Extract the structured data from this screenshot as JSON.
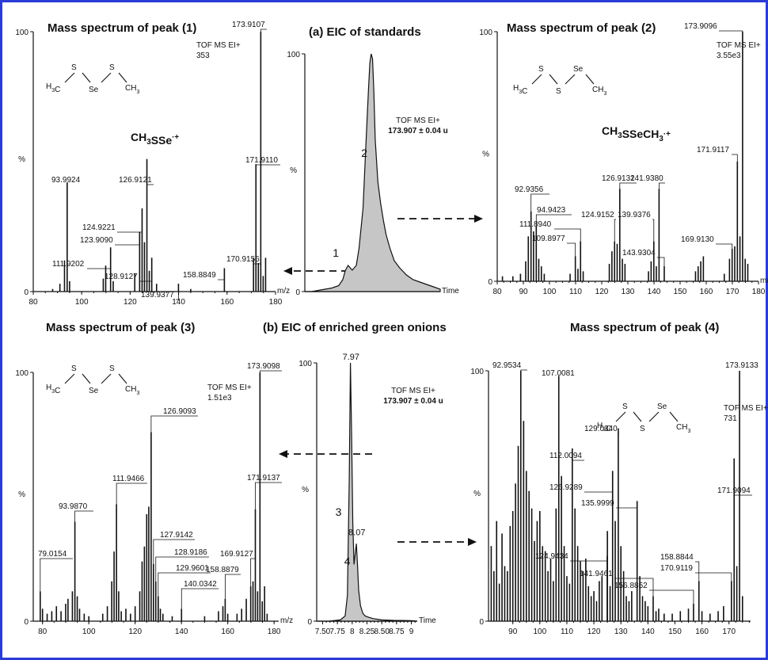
{
  "figure": {
    "header_a": "(a) EIC of standards",
    "header_b": "(b) EIC of enriched green onions"
  },
  "chart_data": [
    {
      "id": "p1",
      "type": "bar",
      "title": "Mass spectrum of peak (1)",
      "structure": "H3C-S-Se-S-CH3",
      "ion_label": "CH3SSe·+",
      "info": [
        "TOF MS EI+",
        "353"
      ],
      "xlabel": "m/z",
      "ylabel": "%",
      "xlim": [
        80,
        180
      ],
      "ylim": [
        0,
        100
      ],
      "xticks": [
        80,
        100,
        120,
        140,
        160,
        180
      ],
      "yticks": [
        0,
        100
      ],
      "peaks": [
        {
          "mz": 173.9107,
          "i": 100,
          "label": "173.9107"
        },
        {
          "mz": 171.911,
          "i": 49,
          "label": "171.9110"
        },
        {
          "mz": 126.9121,
          "i": 51,
          "label": "126.9121"
        },
        {
          "mz": 124.9221,
          "i": 32,
          "label": "124.9221"
        },
        {
          "mz": 123.909,
          "i": 23,
          "label": "123.9090"
        },
        {
          "mz": 93.9924,
          "i": 42,
          "label": "93.9924"
        },
        {
          "mz": 111.9202,
          "i": 17,
          "label": "111.9202"
        },
        {
          "mz": 128.9127,
          "i": 13,
          "label": "128.9127"
        },
        {
          "mz": 170.9156,
          "i": 13,
          "label": "170.9156"
        },
        {
          "mz": 158.8849,
          "i": 9,
          "label": "158.8849"
        },
        {
          "mz": 139.9377,
          "i": 3,
          "label": "139.9377"
        },
        {
          "mz": 92.9,
          "i": 12
        },
        {
          "mz": 91.0,
          "i": 3
        },
        {
          "mz": 95.0,
          "i": 4
        },
        {
          "mz": 88.0,
          "i": 1
        },
        {
          "mz": 108.9,
          "i": 5
        },
        {
          "mz": 109.9,
          "i": 10
        },
        {
          "mz": 113.0,
          "i": 4
        },
        {
          "mz": 121.9,
          "i": 7
        },
        {
          "mz": 125.9,
          "i": 19
        },
        {
          "mz": 127.9,
          "i": 8
        },
        {
          "mz": 130.9,
          "i": 3
        },
        {
          "mz": 145.0,
          "i": 1
        },
        {
          "mz": 172.9,
          "i": 11
        },
        {
          "mz": 174.9,
          "i": 6
        },
        {
          "mz": 175.9,
          "i": 13
        }
      ]
    },
    {
      "id": "eicA",
      "type": "area",
      "title": "(a) EIC of standards",
      "info": [
        "TOF MS EI+",
        "173.907 ± 0.04 u"
      ],
      "xlabel": "Time",
      "ylabel": "%",
      "xlim": [
        0,
        10
      ],
      "ylim": [
        0,
        100
      ],
      "yticks": [
        0,
        100
      ],
      "peak_labels": [
        {
          "text": "1",
          "x": 3.0,
          "y": 16
        },
        {
          "text": "2",
          "x": 5.1,
          "y": 58
        }
      ],
      "x": [
        0,
        0.5,
        1,
        1.5,
        2,
        2.5,
        2.8,
        3.0,
        3.2,
        3.5,
        3.8,
        4.0,
        4.3,
        4.5,
        4.7,
        4.8,
        4.9,
        5.0,
        5.1,
        5.2,
        5.4,
        5.6,
        5.8,
        6.0,
        6.3,
        6.6,
        7.0,
        7.5,
        8.0,
        8.5,
        9.0,
        9.5,
        10
      ],
      "y": [
        0,
        0,
        0.5,
        1,
        1.5,
        2.5,
        5,
        9,
        11,
        9,
        11,
        18,
        35,
        60,
        85,
        96,
        100,
        98,
        84,
        64,
        46,
        37,
        30,
        24,
        18,
        13,
        10,
        7,
        5,
        4,
        3,
        2,
        1
      ]
    },
    {
      "id": "p2",
      "type": "bar",
      "title": "Mass spectrum of peak (2)",
      "structure": "H3C-S-S-Se-CH3",
      "ion_label": "CH3SSeCH3·+",
      "info": [
        "TOF MS EI+",
        "3.55e3"
      ],
      "xlabel": "m/z",
      "ylabel": "%",
      "xlim": [
        80,
        180
      ],
      "ylim": [
        0,
        100
      ],
      "xticks": [
        80,
        90,
        100,
        110,
        120,
        130,
        140,
        150,
        160,
        170,
        180
      ],
      "yticks": [
        0,
        100
      ],
      "peaks": [
        {
          "mz": 173.9096,
          "i": 100,
          "label": "173.9096"
        },
        {
          "mz": 171.9117,
          "i": 48,
          "label": "171.9117"
        },
        {
          "mz": 126.9132,
          "i": 37,
          "label": "126.9132"
        },
        {
          "mz": 141.938,
          "i": 37,
          "label": "141.9380"
        },
        {
          "mz": 92.9356,
          "i": 28,
          "label": "92.9356"
        },
        {
          "mz": 94.9423,
          "i": 22,
          "label": "94.9423"
        },
        {
          "mz": 111.894,
          "i": 16,
          "label": "111.8940"
        },
        {
          "mz": 124.9152,
          "i": 16,
          "label": "124.9152"
        },
        {
          "mz": 139.9376,
          "i": 16,
          "label": "139.9376"
        },
        {
          "mz": 109.8977,
          "i": 10,
          "label": "109.8977"
        },
        {
          "mz": 143.9304,
          "i": 6,
          "label": "143.9304"
        },
        {
          "mz": 169.913,
          "i": 13,
          "label": "169.9130"
        },
        {
          "mz": 90.9,
          "i": 8
        },
        {
          "mz": 91.9,
          "i": 18
        },
        {
          "mz": 93.9,
          "i": 20
        },
        {
          "mz": 95.9,
          "i": 9
        },
        {
          "mz": 96.9,
          "i": 6
        },
        {
          "mz": 82.0,
          "i": 2
        },
        {
          "mz": 86.0,
          "i": 2
        },
        {
          "mz": 88.9,
          "i": 3
        },
        {
          "mz": 98.0,
          "i": 3
        },
        {
          "mz": 107.9,
          "i": 3
        },
        {
          "mz": 110.9,
          "i": 5
        },
        {
          "mz": 112.9,
          "i": 4
        },
        {
          "mz": 122.9,
          "i": 7
        },
        {
          "mz": 123.9,
          "i": 12
        },
        {
          "mz": 125.9,
          "i": 15
        },
        {
          "mz": 127.9,
          "i": 9
        },
        {
          "mz": 128.9,
          "i": 7
        },
        {
          "mz": 137.9,
          "i": 4
        },
        {
          "mz": 138.9,
          "i": 8
        },
        {
          "mz": 140.9,
          "i": 6
        },
        {
          "mz": 155.9,
          "i": 4
        },
        {
          "mz": 156.9,
          "i": 6
        },
        {
          "mz": 157.9,
          "i": 8
        },
        {
          "mz": 158.9,
          "i": 10
        },
        {
          "mz": 166.9,
          "i": 3
        },
        {
          "mz": 168.9,
          "i": 9
        },
        {
          "mz": 170.9,
          "i": 14
        },
        {
          "mz": 172.9,
          "i": 18
        },
        {
          "mz": 174.9,
          "i": 9
        },
        {
          "mz": 175.9,
          "i": 7
        }
      ]
    },
    {
      "id": "p3",
      "type": "bar",
      "title": "Mass spectrum of peak (3)",
      "structure": "H3C-S-Se-S-CH3",
      "info": [
        "TOF MS EI+",
        "1.51e3"
      ],
      "xlabel": "m/z",
      "ylabel": "%",
      "xlim": [
        76,
        182
      ],
      "ylim": [
        0,
        100
      ],
      "xticks": [
        80,
        100,
        120,
        140,
        160,
        180
      ],
      "yticks": [
        0,
        100
      ],
      "peaks": [
        {
          "mz": 173.9098,
          "i": 100,
          "label": "173.9098"
        },
        {
          "mz": 126.9093,
          "i": 76,
          "label": "126.9093"
        },
        {
          "mz": 171.9137,
          "i": 45,
          "label": "171.9137"
        },
        {
          "mz": 111.9466,
          "i": 47,
          "label": "111.9466"
        },
        {
          "mz": 93.987,
          "i": 40,
          "label": "93.9870"
        },
        {
          "mz": 127.9142,
          "i": 23,
          "label": "127.9142"
        },
        {
          "mz": 128.9186,
          "i": 16,
          "label": "128.9186"
        },
        {
          "mz": 129.9601,
          "i": 10,
          "label": "129.9601"
        },
        {
          "mz": 140.0342,
          "i": 5,
          "label": "140.0342"
        },
        {
          "mz": 79.0154,
          "i": 12,
          "label": "79.0154"
        },
        {
          "mz": 169.9127,
          "i": 14,
          "label": "169.9127"
        },
        {
          "mz": 158.8879,
          "i": 9,
          "label": "158.8879"
        },
        {
          "mz": 80.0,
          "i": 5
        },
        {
          "mz": 82.0,
          "i": 3
        },
        {
          "mz": 84.0,
          "i": 4
        },
        {
          "mz": 86.0,
          "i": 6
        },
        {
          "mz": 88.0,
          "i": 4
        },
        {
          "mz": 90.0,
          "i": 7
        },
        {
          "mz": 91.0,
          "i": 9
        },
        {
          "mz": 92.9,
          "i": 12
        },
        {
          "mz": 95.0,
          "i": 10
        },
        {
          "mz": 96.0,
          "i": 5
        },
        {
          "mz": 98.0,
          "i": 3
        },
        {
          "mz": 100.0,
          "i": 2
        },
        {
          "mz": 106.0,
          "i": 3
        },
        {
          "mz": 108.0,
          "i": 6
        },
        {
          "mz": 109.9,
          "i": 16
        },
        {
          "mz": 110.9,
          "i": 28
        },
        {
          "mz": 112.9,
          "i": 12
        },
        {
          "mz": 114.0,
          "i": 4
        },
        {
          "mz": 116.0,
          "i": 5
        },
        {
          "mz": 118.0,
          "i": 3
        },
        {
          "mz": 120.0,
          "i": 6
        },
        {
          "mz": 122.0,
          "i": 12
        },
        {
          "mz": 123.0,
          "i": 24
        },
        {
          "mz": 124.0,
          "i": 30
        },
        {
          "mz": 125.0,
          "i": 43
        },
        {
          "mz": 125.9,
          "i": 46
        },
        {
          "mz": 130.9,
          "i": 5
        },
        {
          "mz": 132.0,
          "i": 3
        },
        {
          "mz": 136.0,
          "i": 2
        },
        {
          "mz": 150.0,
          "i": 2
        },
        {
          "mz": 156.0,
          "i": 4
        },
        {
          "mz": 157.9,
          "i": 6
        },
        {
          "mz": 160.0,
          "i": 3
        },
        {
          "mz": 164.0,
          "i": 3
        },
        {
          "mz": 166.0,
          "i": 5
        },
        {
          "mz": 168.0,
          "i": 9
        },
        {
          "mz": 170.9,
          "i": 16
        },
        {
          "mz": 172.9,
          "i": 12
        },
        {
          "mz": 174.9,
          "i": 8
        },
        {
          "mz": 175.9,
          "i": 14
        },
        {
          "mz": 177.0,
          "i": 3
        }
      ]
    },
    {
      "id": "eicB",
      "type": "area",
      "title": "(b) EIC of enriched green onions",
      "info": [
        "TOF MS EI+",
        "173.907 ± 0.04 u"
      ],
      "xlabel": "Time",
      "ylabel": "%",
      "xlim": [
        7.4,
        9.1
      ],
      "ylim": [
        0,
        100
      ],
      "xticks": [
        7.5,
        7.75,
        8.0,
        8.25,
        8.5,
        8.75,
        9.0
      ],
      "yticks": [
        0,
        100
      ],
      "peak_labels": [
        {
          "text": "7.97",
          "x": 7.97,
          "y": 100
        },
        {
          "text": "8.07",
          "x": 8.07,
          "y": 32
        },
        {
          "text": "3",
          "x": 7.93,
          "y": 42
        },
        {
          "text": "4",
          "x": 8.08,
          "y": 23
        }
      ],
      "x": [
        7.4,
        7.6,
        7.8,
        7.88,
        7.92,
        7.95,
        7.97,
        7.99,
        8.01,
        8.03,
        8.05,
        8.07,
        8.09,
        8.11,
        8.14,
        8.18,
        8.22,
        8.28,
        8.35,
        8.5,
        8.7,
        9.0,
        9.1
      ],
      "y": [
        0,
        0,
        0.5,
        2,
        10,
        55,
        100,
        72,
        38,
        22,
        26,
        30,
        22,
        12,
        6,
        3,
        2,
        1.5,
        1,
        0.5,
        0.3,
        0.2,
        0
      ]
    },
    {
      "id": "p4",
      "type": "bar",
      "title": "Mass spectrum of peak (4)",
      "structure": "H3C-S-S-Se-CH3",
      "info": [
        "TOF MS EI+",
        "731"
      ],
      "xlabel": "",
      "ylabel": "%",
      "xlim": [
        81,
        178
      ],
      "ylim": [
        0,
        100
      ],
      "xticks": [
        90,
        100,
        110,
        120,
        130,
        140,
        150,
        160,
        170
      ],
      "yticks": [
        0,
        100
      ],
      "peaks": [
        {
          "mz": 92.9534,
          "i": 100,
          "label": "92.9534"
        },
        {
          "mz": 107.0081,
          "i": 98,
          "label": "107.0081"
        },
        {
          "mz": 173.9133,
          "i": 100,
          "label": "173.9133"
        },
        {
          "mz": 129.034,
          "i": 77,
          "label": "129.0340"
        },
        {
          "mz": 112.0094,
          "i": 69,
          "label": "112.0094"
        },
        {
          "mz": 126.9289,
          "i": 60,
          "label": "126.9289"
        },
        {
          "mz": 171.9094,
          "i": 65,
          "label": "171.9094"
        },
        {
          "mz": 135.9999,
          "i": 48,
          "label": "135.9999"
        },
        {
          "mz": 124.9434,
          "i": 26,
          "label": "124.9434"
        },
        {
          "mz": 141.9461,
          "i": 10,
          "label": "141.9461"
        },
        {
          "mz": 156.8852,
          "i": 7,
          "label": "156.8852"
        },
        {
          "mz": 158.8844,
          "i": 16,
          "label": "158.8844"
        },
        {
          "mz": 170.9119,
          "i": 16,
          "label": "170.9119"
        },
        {
          "mz": 82.0,
          "i": 30
        },
        {
          "mz": 83.0,
          "i": 20
        },
        {
          "mz": 84.0,
          "i": 40
        },
        {
          "mz": 85.0,
          "i": 15
        },
        {
          "mz": 86.0,
          "i": 35
        },
        {
          "mz": 87.0,
          "i": 22
        },
        {
          "mz": 88.0,
          "i": 20
        },
        {
          "mz": 89.0,
          "i": 38
        },
        {
          "mz": 90.0,
          "i": 44
        },
        {
          "mz": 91.0,
          "i": 55
        },
        {
          "mz": 92.0,
          "i": 70
        },
        {
          "mz": 94.0,
          "i": 80
        },
        {
          "mz": 95.0,
          "i": 60
        },
        {
          "mz": 96.0,
          "i": 52
        },
        {
          "mz": 97.0,
          "i": 45
        },
        {
          "mz": 98.0,
          "i": 32
        },
        {
          "mz": 99.0,
          "i": 40
        },
        {
          "mz": 100.0,
          "i": 44
        },
        {
          "mz": 101.0,
          "i": 30
        },
        {
          "mz": 102.0,
          "i": 28
        },
        {
          "mz": 103.0,
          "i": 20
        },
        {
          "mz": 104.0,
          "i": 25
        },
        {
          "mz": 105.0,
          "i": 16
        },
        {
          "mz": 106.0,
          "i": 45
        },
        {
          "mz": 108.0,
          "i": 58
        },
        {
          "mz": 109.0,
          "i": 30
        },
        {
          "mz": 110.0,
          "i": 18
        },
        {
          "mz": 111.0,
          "i": 15
        },
        {
          "mz": 113.0,
          "i": 45
        },
        {
          "mz": 114.0,
          "i": 30
        },
        {
          "mz": 115.0,
          "i": 24
        },
        {
          "mz": 116.0,
          "i": 20
        },
        {
          "mz": 117.0,
          "i": 25
        },
        {
          "mz": 118.0,
          "i": 14
        },
        {
          "mz": 119.0,
          "i": 10
        },
        {
          "mz": 120.0,
          "i": 12
        },
        {
          "mz": 121.0,
          "i": 8
        },
        {
          "mz": 122.0,
          "i": 16
        },
        {
          "mz": 123.0,
          "i": 18
        },
        {
          "mz": 125.0,
          "i": 36
        },
        {
          "mz": 126.0,
          "i": 14
        },
        {
          "mz": 127.9,
          "i": 40
        },
        {
          "mz": 130.0,
          "i": 30
        },
        {
          "mz": 131.0,
          "i": 20
        },
        {
          "mz": 132.0,
          "i": 10
        },
        {
          "mz": 133.0,
          "i": 8
        },
        {
          "mz": 134.0,
          "i": 12
        },
        {
          "mz": 137.0,
          "i": 18
        },
        {
          "mz": 138.0,
          "i": 10
        },
        {
          "mz": 139.0,
          "i": 8
        },
        {
          "mz": 140.0,
          "i": 6
        },
        {
          "mz": 143.0,
          "i": 4
        },
        {
          "mz": 144.0,
          "i": 5
        },
        {
          "mz": 146.0,
          "i": 3
        },
        {
          "mz": 149.0,
          "i": 3
        },
        {
          "mz": 152.0,
          "i": 4
        },
        {
          "mz": 155.0,
          "i": 5
        },
        {
          "mz": 160.0,
          "i": 4
        },
        {
          "mz": 163.0,
          "i": 3
        },
        {
          "mz": 166.0,
          "i": 4
        },
        {
          "mz": 168.0,
          "i": 6
        },
        {
          "mz": 172.9,
          "i": 22
        },
        {
          "mz": 175.0,
          "i": 10
        }
      ]
    }
  ]
}
